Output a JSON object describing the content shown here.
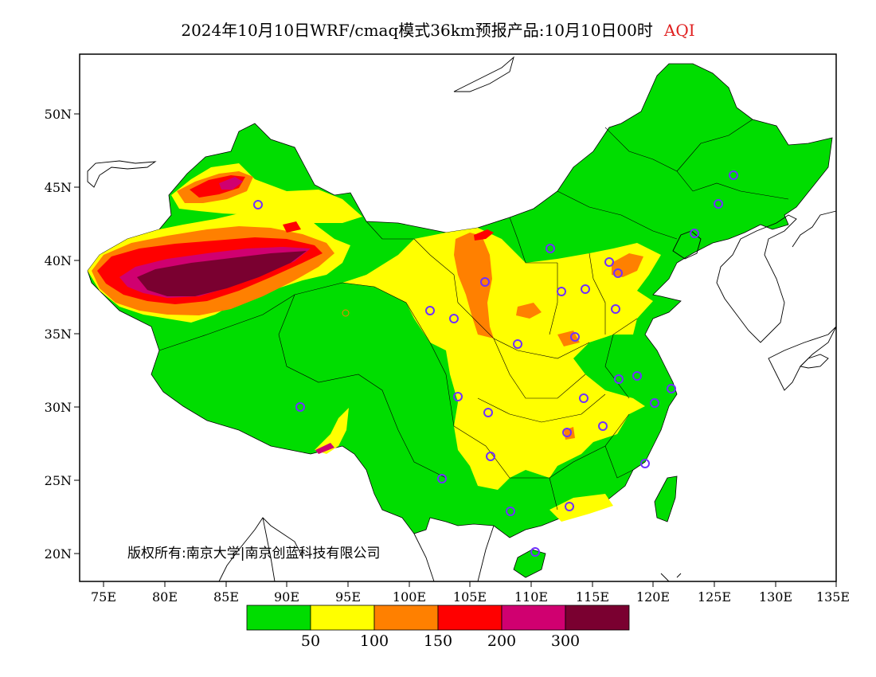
{
  "title": {
    "main": "2024年10月10日WRF/cmaq模式36km预报产品:10月10日00时",
    "variable": "AQI"
  },
  "axes": {
    "lat_labels": [
      "50N",
      "45N",
      "40N",
      "35N",
      "30N",
      "25N",
      "20N"
    ],
    "lon_labels": [
      "75E",
      "80E",
      "85E",
      "90E",
      "95E",
      "100E",
      "105E",
      "110E",
      "115E",
      "120E",
      "125E",
      "130E",
      "135E"
    ]
  },
  "copyright": "版权所有:南京大学|南京创蓝科技有限公司",
  "legend": {
    "colors": [
      "#00dd00",
      "#ffff00",
      "#ff8000",
      "#ff0000",
      "#d00070",
      "#7a0030"
    ],
    "labels": [
      "50",
      "100",
      "150",
      "200",
      "300"
    ]
  },
  "colors": {
    "good": "#00dd00",
    "moderate": "#ffff00",
    "unhealthy_sensitive": "#ff8000",
    "unhealthy": "#ff0000",
    "very_unhealthy": "#d00070",
    "hazardous": "#7a0030",
    "station_marker": "#7030ff"
  }
}
